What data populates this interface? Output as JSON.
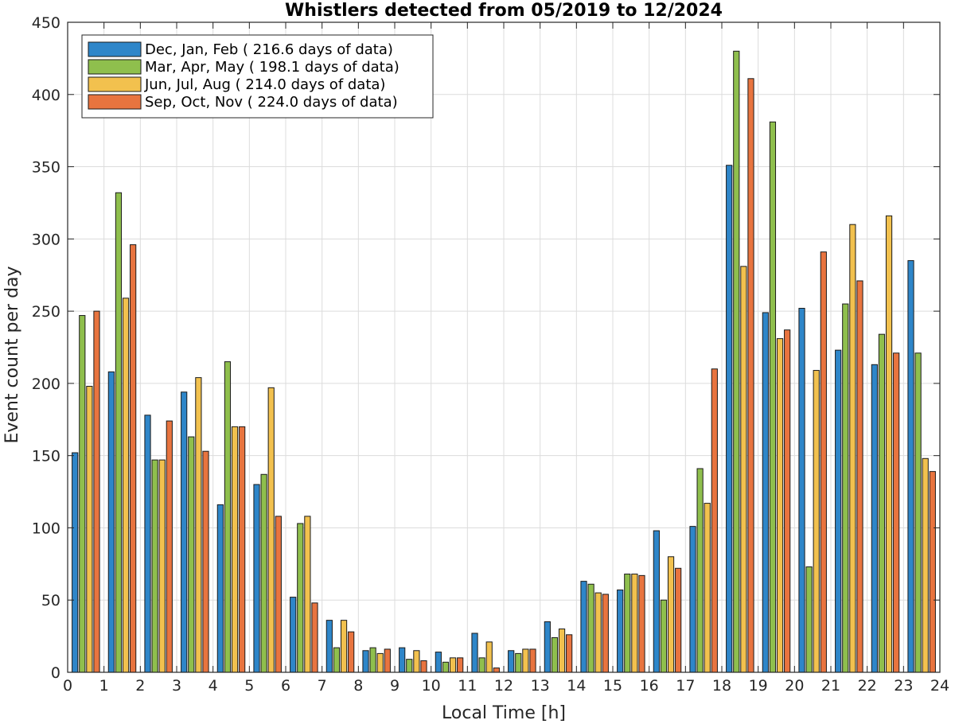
{
  "chart_data": {
    "type": "bar",
    "title": "Whistlers detected from 05/2019 to 12/2024",
    "xlabel": "Local Time [h]",
    "ylabel": "Event count per day",
    "xlim": [
      0,
      24
    ],
    "ylim": [
      0,
      450
    ],
    "xticks": [
      "0",
      "1",
      "2",
      "3",
      "4",
      "5",
      "6",
      "7",
      "8",
      "9",
      "10",
      "11",
      "12",
      "13",
      "14",
      "15",
      "16",
      "17",
      "18",
      "19",
      "20",
      "21",
      "22",
      "23",
      "24"
    ],
    "yticks": [
      "0",
      "50",
      "100",
      "150",
      "200",
      "250",
      "300",
      "350",
      "400",
      "450"
    ],
    "grid": true,
    "legend_position": "top-left",
    "bin_hours": [
      "0-1",
      "1-2",
      "2-3",
      "3-4",
      "4-5",
      "5-6",
      "6-7",
      "7-8",
      "8-9",
      "9-10",
      "10-11",
      "11-12",
      "12-13",
      "13-14",
      "14-15",
      "15-16",
      "16-17",
      "17-18",
      "18-19",
      "19-20",
      "20-21",
      "21-22",
      "22-23",
      "23-24"
    ],
    "series": [
      {
        "name": "Dec, Jan, Feb ( 216.6 days of data)",
        "color": "#2e86c9",
        "values": [
          152,
          208,
          178,
          194,
          116,
          130,
          52,
          36,
          15,
          17,
          14,
          27,
          15,
          35,
          63,
          57,
          98,
          101,
          351,
          249,
          252,
          223,
          213,
          285
        ]
      },
      {
        "name": "Mar, Apr, May ( 198.1 days of data)",
        "color": "#8fbf4d",
        "values": [
          247,
          332,
          147,
          163,
          215,
          137,
          103,
          17,
          17,
          9,
          7,
          10,
          13,
          24,
          61,
          68,
          50,
          141,
          430,
          381,
          73,
          255,
          234,
          221
        ]
      },
      {
        "name": "Jun, Jul, Aug ( 214.0 days of data)",
        "color": "#f2c14e",
        "values": [
          198,
          259,
          147,
          204,
          170,
          197,
          108,
          36,
          13,
          15,
          10,
          21,
          16,
          30,
          55,
          68,
          80,
          117,
          281,
          231,
          209,
          310,
          316,
          148
        ]
      },
      {
        "name": "Sep, Oct, Nov ( 224.0 days of data)",
        "color": "#e8743f",
        "values": [
          250,
          296,
          174,
          153,
          170,
          108,
          48,
          28,
          16,
          8,
          10,
          3,
          16,
          26,
          54,
          67,
          72,
          210,
          411,
          237,
          291,
          271,
          221,
          139
        ]
      }
    ]
  }
}
